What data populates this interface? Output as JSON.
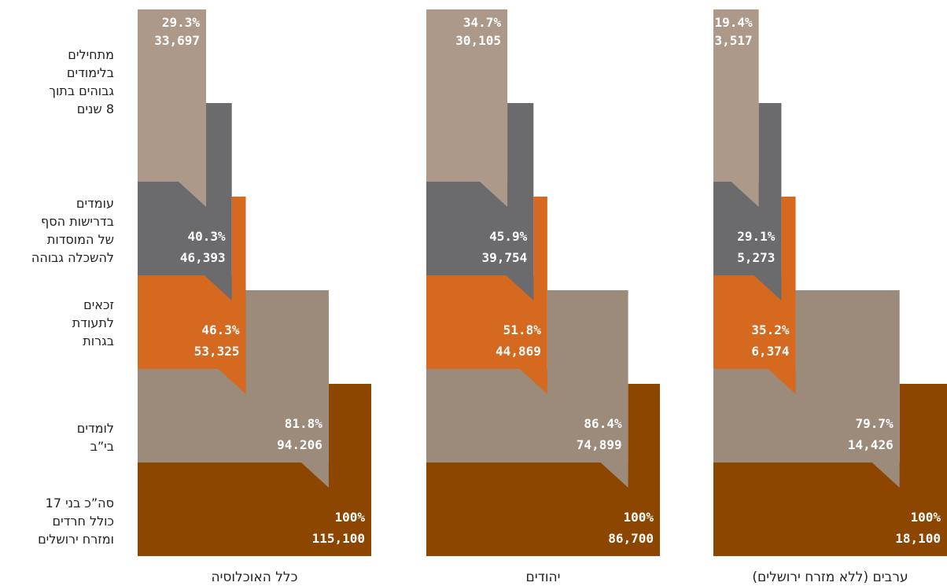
{
  "chart_data": {
    "type": "funnel",
    "categories": [
      "סה”כ בני 17\nכולל חרדים\nומזרח ירושלים",
      "לומדים\nבי”ב",
      "זכאים\nלתעודת\nבגרות",
      "עומדים\nבדרישות הסף\nשל המוסדות\nלהשכלה גבוהה",
      "מתחילים\nבלימודים\nגבוהים בתוך\n8 שנים"
    ],
    "colors": [
      "#8c4600",
      "#9c8a7a",
      "#d4691f",
      "#6b6b6e",
      "#ad998a"
    ],
    "series": [
      {
        "name": "כלל האוכלוסיה",
        "values": [
          100,
          81.8,
          46.3,
          40.3,
          29.3
        ],
        "value_labels": [
          "100%",
          "81.8%",
          "46.3%",
          "40.3%",
          "29.3%"
        ],
        "counts": [
          115100,
          94206,
          53325,
          46393,
          33697
        ],
        "count_labels": [
          "115,100",
          "94.206",
          "53,325",
          "46,393",
          "33,697"
        ]
      },
      {
        "name": "יהודים",
        "values": [
          100,
          86.4,
          51.8,
          45.9,
          34.7
        ],
        "value_labels": [
          "100%",
          "86.4%",
          "51.8%",
          "45.9%",
          "34.7%"
        ],
        "counts": [
          86700,
          74899,
          44869,
          39754,
          30105
        ],
        "count_labels": [
          "86,700",
          "74,899",
          "44,869",
          "39,754",
          "30,105"
        ]
      },
      {
        "name": "ערבים (ללא מזרח ירושלים)",
        "values": [
          100,
          79.7,
          35.2,
          29.1,
          19.4
        ],
        "value_labels": [
          "100%",
          "79.7%",
          "35.2%",
          "29.1%",
          "19.4%"
        ],
        "counts": [
          18100,
          14426,
          6374,
          5273,
          3517
        ],
        "count_labels": [
          "18,100",
          "14,426",
          "6,374",
          "5,273",
          "3,517"
        ]
      }
    ]
  }
}
